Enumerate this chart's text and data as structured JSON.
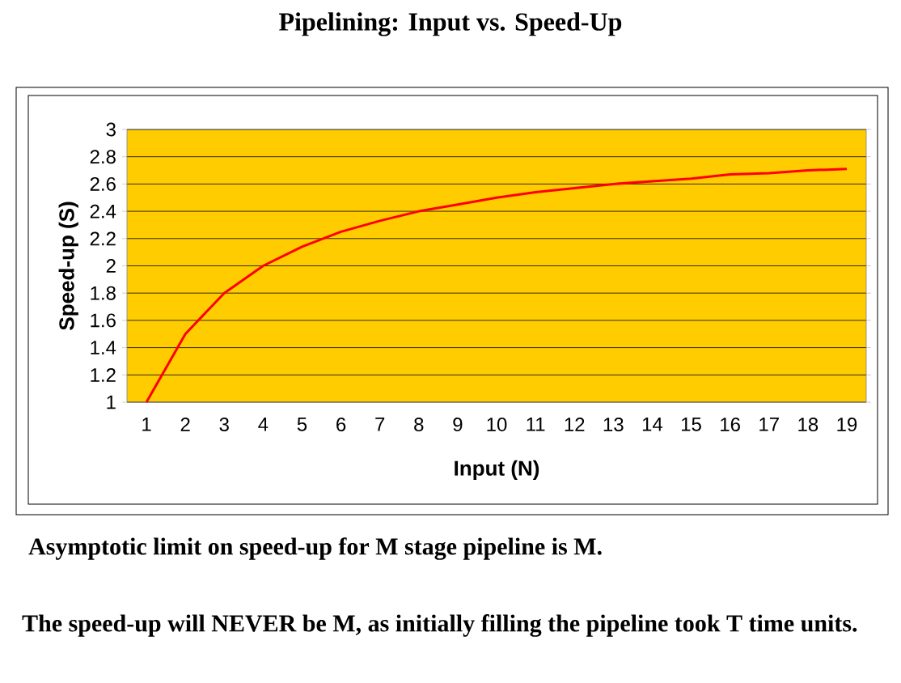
{
  "chart_data": {
    "type": "line",
    "title": "Pipelining: Input vs. Speed-Up",
    "categories": [
      "1",
      "2",
      "3",
      "4",
      "5",
      "6",
      "7",
      "8",
      "9",
      "10",
      "11",
      "12",
      "13",
      "14",
      "15",
      "16",
      "17",
      "18",
      "19"
    ],
    "values": [
      1,
      1.5,
      1.8,
      2,
      2.14,
      2.25,
      2.33,
      2.4,
      2.45,
      2.5,
      2.54,
      2.57,
      2.6,
      2.62,
      2.64,
      2.67,
      2.68,
      2.7,
      2.71
    ],
    "color": "#ff0000",
    "line_style": "solid",
    "xlabel": "Input (N)",
    "ylabel": "Speed-up (S)",
    "ylim": [
      1,
      3
    ],
    "yticks": [
      1,
      1.2,
      1.4,
      1.6,
      1.8,
      2,
      2.2,
      2.4,
      2.6,
      2.8,
      3
    ],
    "grid": "y",
    "annotations": [
      "Asymptotic limit on speed-up for M stage pipeline is M.",
      "The speed-up will NEVER be M, as initially filling the pipeline took  T time units."
    ]
  }
}
